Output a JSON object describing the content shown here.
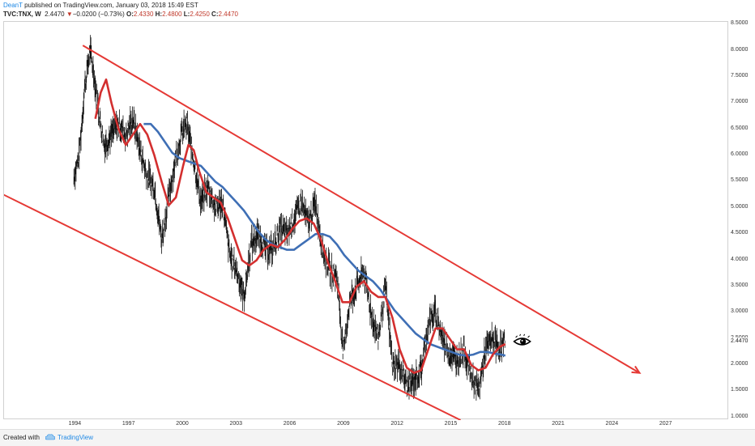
{
  "header": {
    "author": "DeanT",
    "published": " published on TradingView.com, January 03, 2018 15:49 EST",
    "symbol": "TVC:TNX, W",
    "last": "2.4470",
    "down_arrow": "▼",
    "change": "−0.0200 (−0.73%)",
    "o_label": "O:",
    "o_val": "2.4330",
    "h_label": "H:",
    "h_val": "2.4800",
    "l_label": "L:",
    "l_val": "2.4250",
    "c_label": "C:",
    "c_val": "2.4470"
  },
  "footer": {
    "created_with": "Created with",
    "brand": "TradingView"
  },
  "colors": {
    "price": "#111111",
    "fast_ma": "#d32f2f",
    "slow_ma": "#3f6fb5",
    "channel": "#e53935"
  },
  "chart_data": {
    "type": "line",
    "title": "",
    "xlabel": "",
    "ylabel": "",
    "x_ticks": [
      "1994",
      "1997",
      "2000",
      "2003",
      "2006",
      "2009",
      "2012",
      "2015",
      "2018",
      "2021",
      "2024",
      "2027"
    ],
    "y_ticks": [
      "8.5000",
      "8.0000",
      "7.5000",
      "7.0000",
      "6.5000",
      "6.0000",
      "5.5000",
      "5.0000",
      "4.5000",
      "4.0000",
      "3.5000",
      "3.0000",
      "2.5000",
      "2.0000",
      "1.5000",
      "1.0000"
    ],
    "current_value_label": "2.4470",
    "xlim": [
      1990.0,
      2030.5
    ],
    "ylim": [
      0.95,
      8.55
    ],
    "log_scale": false,
    "grid": false,
    "series": [
      {
        "kind": "price",
        "x": [
          1993.9,
          1994.2,
          1994.5,
          1994.8,
          1995.0,
          1995.3,
          1995.6,
          1996.0,
          1996.4,
          1996.8,
          1997.2,
          1997.6,
          1998.0,
          1998.4,
          1998.8,
          1999.1,
          1999.5,
          1999.9,
          2000.2,
          2000.6,
          2001.0,
          2001.4,
          2001.8,
          2002.2,
          2002.6,
          2003.0,
          2003.4,
          2003.8,
          2004.2,
          2004.6,
          2005.0,
          2005.4,
          2005.8,
          2006.2,
          2006.6,
          2007.0,
          2007.4,
          2007.8,
          2008.2,
          2008.6,
          2008.95,
          2009.3,
          2009.7,
          2010.1,
          2010.5,
          2010.9,
          2011.3,
          2011.7,
          2012.1,
          2012.5,
          2012.9,
          2013.3,
          2013.7,
          2014.1,
          2014.5,
          2014.9,
          2015.3,
          2015.7,
          2016.1,
          2016.5,
          2016.9,
          2017.3,
          2017.7,
          2018.0
        ],
        "y": [
          5.6,
          6.0,
          7.3,
          8.0,
          7.6,
          6.8,
          6.2,
          6.4,
          6.6,
          6.4,
          6.7,
          6.1,
          5.6,
          5.4,
          4.4,
          5.0,
          5.8,
          6.4,
          6.6,
          5.9,
          5.1,
          5.4,
          5.0,
          5.1,
          4.1,
          3.8,
          3.3,
          4.3,
          4.5,
          4.2,
          4.2,
          4.6,
          4.5,
          4.8,
          5.1,
          4.7,
          5.1,
          4.2,
          3.8,
          3.7,
          2.2,
          3.2,
          3.5,
          3.8,
          3.0,
          2.5,
          3.5,
          2.0,
          2.0,
          1.6,
          1.7,
          1.9,
          2.8,
          3.0,
          2.5,
          2.2,
          2.1,
          2.3,
          1.8,
          1.5,
          2.3,
          2.5,
          2.3,
          2.447
        ]
      },
      {
        "kind": "fast_ma",
        "x": [
          1995.1,
          1995.4,
          1995.7,
          1996.0,
          1996.4,
          1996.8,
          1997.2,
          1997.6,
          1998.0,
          1998.4,
          1998.8,
          1999.2,
          1999.6,
          2000.0,
          2000.3,
          2000.6,
          2000.9,
          2001.3,
          2001.7,
          2002.1,
          2002.5,
          2002.9,
          2003.3,
          2003.7,
          2004.1,
          2004.5,
          2004.9,
          2005.3,
          2005.7,
          2006.1,
          2006.5,
          2006.9,
          2007.3,
          2007.7,
          2008.1,
          2008.5,
          2008.9,
          2009.3,
          2009.7,
          2010.1,
          2010.5,
          2010.9,
          2011.3,
          2011.7,
          2012.1,
          2012.5,
          2012.9,
          2013.3,
          2013.7,
          2014.1,
          2014.5,
          2014.9,
          2015.3,
          2015.7,
          2016.1,
          2016.5,
          2016.9,
          2017.3,
          2017.7,
          2018.0
        ],
        "y": [
          6.7,
          7.2,
          7.45,
          7.0,
          6.5,
          6.2,
          6.4,
          6.6,
          6.4,
          6.0,
          5.5,
          5.05,
          5.2,
          5.8,
          6.2,
          6.1,
          5.7,
          5.3,
          5.2,
          5.1,
          4.8,
          4.4,
          4.0,
          3.9,
          4.0,
          4.2,
          4.3,
          4.25,
          4.4,
          4.6,
          4.75,
          4.8,
          4.7,
          4.4,
          3.95,
          3.6,
          3.2,
          3.2,
          3.5,
          3.6,
          3.4,
          3.3,
          3.3,
          2.9,
          2.3,
          1.95,
          1.85,
          1.9,
          2.3,
          2.7,
          2.7,
          2.5,
          2.3,
          2.3,
          2.0,
          1.9,
          1.95,
          2.2,
          2.35,
          2.4
        ]
      },
      {
        "kind": "slow_ma",
        "x": [
          1997.8,
          1998.2,
          1998.6,
          1999.0,
          1999.4,
          1999.8,
          2000.2,
          2000.6,
          2001.0,
          2001.4,
          2001.8,
          2002.2,
          2002.6,
          2003.0,
          2003.4,
          2003.8,
          2004.2,
          2004.6,
          2005.0,
          2005.4,
          2005.8,
          2006.2,
          2006.6,
          2007.0,
          2007.4,
          2007.8,
          2008.2,
          2008.6,
          2009.0,
          2009.4,
          2009.8,
          2010.2,
          2010.6,
          2011.0,
          2011.4,
          2011.8,
          2012.2,
          2012.6,
          2013.0,
          2013.4,
          2013.8,
          2014.2,
          2014.6,
          2015.0,
          2015.4,
          2015.8,
          2016.2,
          2016.6,
          2017.0,
          2017.4,
          2017.8,
          2018.0
        ],
        "y": [
          6.6,
          6.6,
          6.45,
          6.25,
          6.05,
          5.95,
          5.9,
          5.85,
          5.8,
          5.65,
          5.5,
          5.4,
          5.25,
          5.1,
          4.95,
          4.75,
          4.55,
          4.4,
          4.3,
          4.25,
          4.2,
          4.2,
          4.3,
          4.4,
          4.5,
          4.5,
          4.45,
          4.3,
          4.1,
          3.95,
          3.8,
          3.7,
          3.6,
          3.45,
          3.25,
          3.05,
          2.9,
          2.75,
          2.6,
          2.5,
          2.4,
          2.35,
          2.3,
          2.25,
          2.2,
          2.18,
          2.2,
          2.25,
          2.25,
          2.22,
          2.2,
          2.18
        ]
      },
      {
        "kind": "channel_upper",
        "x": [
          1994.4,
          2025.5
        ],
        "y": [
          8.1,
          1.85
        ]
      },
      {
        "kind": "channel_lower",
        "x": [
          1988.5,
          2015.5
        ],
        "y": [
          5.5,
          0.95
        ]
      }
    ]
  }
}
